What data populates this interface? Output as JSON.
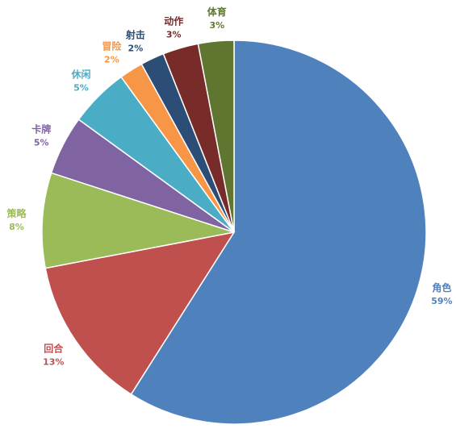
{
  "chart_data": {
    "type": "pie",
    "title": "",
    "start": "top",
    "direction": "clockwise",
    "slices": [
      {
        "label": "角色",
        "value": 59,
        "value_label": "59%",
        "color": "#4F81BD"
      },
      {
        "label": "回合",
        "value": 13,
        "value_label": "13%",
        "color": "#C0504D"
      },
      {
        "label": "策略",
        "value": 8,
        "value_label": "8%",
        "color": "#9BBB59"
      },
      {
        "label": "卡牌",
        "value": 5,
        "value_label": "5%",
        "color": "#8064A2"
      },
      {
        "label": "休闲",
        "value": 5,
        "value_label": "5%",
        "color": "#4BACC6"
      },
      {
        "label": "冒险",
        "value": 2,
        "value_label": "2%",
        "color": "#F79646"
      },
      {
        "label": "射击",
        "value": 2,
        "value_label": "2%",
        "color": "#2C4D75"
      },
      {
        "label": "动作",
        "value": 3,
        "value_label": "3%",
        "color": "#772C2A"
      },
      {
        "label": "体育",
        "value": 3,
        "value_label": "3%",
        "color": "#5F7530"
      }
    ],
    "legend": "none",
    "data_labels": "outside"
  }
}
